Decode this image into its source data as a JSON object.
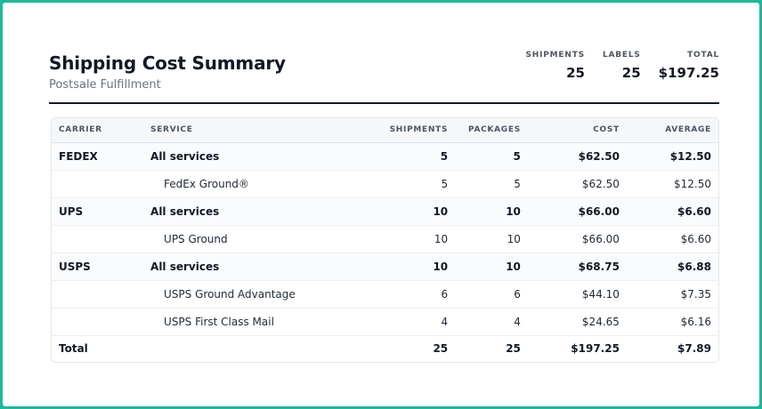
{
  "header": {
    "title": "Shipping Cost Summary",
    "subtitle": "Postsale Fulfillment",
    "stats": [
      {
        "label": "SHIPMENTS",
        "value": "25"
      },
      {
        "label": "LABELS",
        "value": "25"
      },
      {
        "label": "TOTAL",
        "value": "$197.25"
      }
    ]
  },
  "table": {
    "columns": [
      "CARRIER",
      "SERVICE",
      "SHIPMENTS",
      "PACKAGES",
      "COST",
      "AVERAGE"
    ],
    "rows": [
      {
        "type": "group",
        "carrier": "FEDEX",
        "service": "All services",
        "shipments": "5",
        "packages": "5",
        "cost": "$62.50",
        "average": "$12.50"
      },
      {
        "type": "sub",
        "carrier": "",
        "service": "FedEx Ground®",
        "shipments": "5",
        "packages": "5",
        "cost": "$62.50",
        "average": "$12.50"
      },
      {
        "type": "group",
        "carrier": "UPS",
        "service": "All services",
        "shipments": "10",
        "packages": "10",
        "cost": "$66.00",
        "average": "$6.60"
      },
      {
        "type": "sub",
        "carrier": "",
        "service": "UPS Ground",
        "shipments": "10",
        "packages": "10",
        "cost": "$66.00",
        "average": "$6.60"
      },
      {
        "type": "group",
        "carrier": "USPS",
        "service": "All services",
        "shipments": "10",
        "packages": "10",
        "cost": "$68.75",
        "average": "$6.88"
      },
      {
        "type": "sub",
        "carrier": "",
        "service": "USPS Ground Advantage",
        "shipments": "6",
        "packages": "6",
        "cost": "$44.10",
        "average": "$7.35"
      },
      {
        "type": "sub",
        "carrier": "",
        "service": "USPS First Class Mail",
        "shipments": "4",
        "packages": "4",
        "cost": "$24.65",
        "average": "$6.16"
      }
    ],
    "total": {
      "label": "Total",
      "shipments": "25",
      "packages": "25",
      "cost": "$197.25",
      "average": "$7.89"
    }
  }
}
